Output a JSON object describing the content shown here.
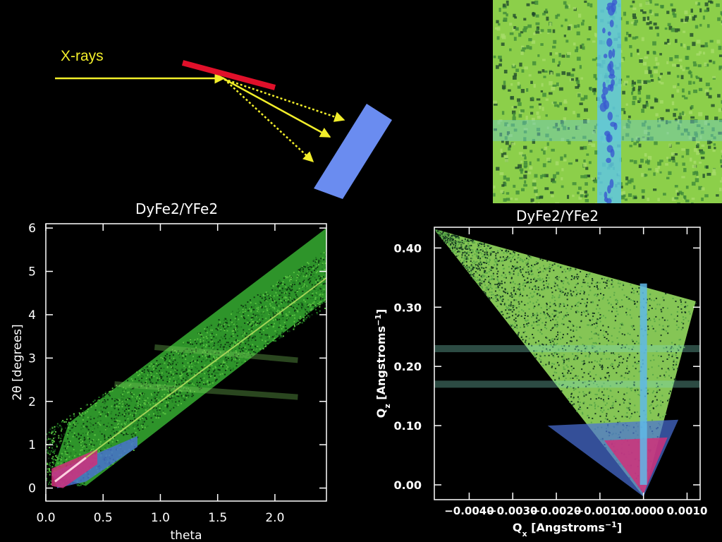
{
  "diagram": {
    "xray_label": "X-rays",
    "beam_color": "#f2ee2a",
    "sample_color": "#e0102a",
    "detector_color": "#6a8cf0"
  },
  "detector_image": {
    "background_color": "#8ccf4a",
    "streak_color": "#5fc7e0"
  },
  "chart_data": [
    {
      "type": "heatmap",
      "title": "DyFe2/YFe2",
      "xlabel": "theta",
      "ylabel": "2θ [degrees]",
      "xlim": [
        0,
        2.45
      ],
      "ylim": [
        -0.3,
        6.1
      ],
      "x_ticks": [
        "0.0",
        "0.5",
        "1.0",
        "1.5",
        "2.0"
      ],
      "x_tick_values": [
        0,
        0.5,
        1.0,
        1.5,
        2.0
      ],
      "y_ticks": [
        "0",
        "1",
        "2",
        "3",
        "4",
        "5",
        "6"
      ],
      "y_tick_values": [
        0,
        1,
        2,
        3,
        4,
        5,
        6
      ],
      "specular_ridge": [
        [
          0.08,
          0.15
        ],
        [
          0.35,
          0.7
        ],
        [
          0.8,
          1.6
        ],
        [
          2.45,
          4.85
        ]
      ],
      "band_corners": [
        [
          0.05,
          0.3
        ],
        [
          0.2,
          1.5
        ],
        [
          2.45,
          6.0
        ],
        [
          2.45,
          4.35
        ],
        [
          0.35,
          0.05
        ]
      ],
      "bragg_bands_y": [
        2.35,
        3.2
      ],
      "colors": {
        "band": "#33a42f",
        "ridge": "#b8e060",
        "low": "#d0307a",
        "mid": "#4a70d8"
      }
    },
    {
      "type": "heatmap",
      "title": "DyFe2/YFe2",
      "xlabel": "Q",
      "xlabel_sub": "x",
      "xlabel_unit": "[Angstroms",
      "xlabel_sup": "−1",
      "xlabel_end": "]",
      "ylabel": "Q",
      "ylabel_sub": "z",
      "ylabel_unit": "[Angstroms",
      "ylabel_sup": "−1",
      "ylabel_end": "]",
      "xlim": [
        -0.0048,
        0.0013
      ],
      "ylim": [
        -0.025,
        0.435
      ],
      "x_ticks": [
        "−0.0040",
        "−0.0030",
        "−0.0020",
        "−0.0010",
        "0.0000",
        "0.0010"
      ],
      "x_tick_values": [
        -0.004,
        -0.003,
        -0.002,
        -0.001,
        0.0,
        0.001
      ],
      "y_ticks": [
        "0.00",
        "0.10",
        "0.20",
        "0.30",
        "0.40"
      ],
      "y_tick_values": [
        0.0,
        0.1,
        0.2,
        0.3,
        0.4
      ],
      "triangle": [
        [
          -0.0048,
          0.432
        ],
        [
          0.0012,
          0.31
        ],
        [
          0.0,
          -0.02
        ]
      ],
      "specular_rod_x": 0.0,
      "bragg_bands_y": [
        0.17,
        0.23
      ],
      "colors": {
        "fill": "#8cd05a",
        "rod": "#5fb8e8",
        "low": "#d0307a",
        "mid": "#4a70d8"
      }
    }
  ]
}
